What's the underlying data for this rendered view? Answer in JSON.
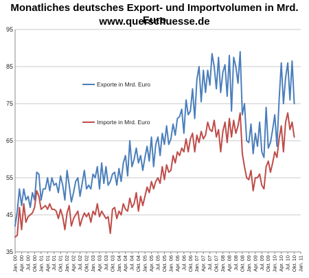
{
  "title": "Monatliches deutsches Export- und Importvolumen in Mrd. Euro",
  "subtitle": "www.querschuesse.de",
  "chart_data": {
    "type": "line",
    "x": [
      "Jan. 00",
      "Feb. 00",
      "Mrz. 00",
      "Apr. 00",
      "Mai 00",
      "Jun. 00",
      "Jul. 00",
      "Aug. 00",
      "Sep. 00",
      "Okt. 00",
      "Nov. 00",
      "Dez. 00",
      "Jan. 01",
      "Feb. 01",
      "Mrz. 01",
      "Apr. 01",
      "Mai 01",
      "Jun. 01",
      "Jul. 01",
      "Aug. 01",
      "Sep. 01",
      "Okt. 01",
      "Nov. 01",
      "Dez. 01",
      "Jan. 02",
      "Feb. 02",
      "Mrz. 02",
      "Apr. 02",
      "Mai 02",
      "Jun. 02",
      "Jul. 02",
      "Aug. 02",
      "Sep. 02",
      "Okt. 02",
      "Nov. 02",
      "Dez. 02",
      "Jan. 03",
      "Feb. 03",
      "Mrz. 03",
      "Apr. 03",
      "Mai 03",
      "Jun. 03",
      "Jul. 03",
      "Aug. 03",
      "Sep. 03",
      "Okt. 03",
      "Nov. 03",
      "Dez. 03",
      "Jan. 04",
      "Feb. 04",
      "Mrz. 04",
      "Apr. 04",
      "Mai 04",
      "Jun. 04",
      "Jul. 04",
      "Aug. 04",
      "Sep. 04",
      "Okt. 04",
      "Nov. 04",
      "Dez. 04",
      "Jan. 05",
      "Feb. 05",
      "Mrz. 05",
      "Apr. 05",
      "Mai 05",
      "Jun. 05",
      "Jul. 05",
      "Aug. 05",
      "Sep. 05",
      "Okt. 05",
      "Nov. 05",
      "Dez. 05",
      "Jan. 06",
      "Feb. 06",
      "Mrz. 06",
      "Apr. 06",
      "Mai 06",
      "Jun. 06",
      "Jul. 06",
      "Aug. 06",
      "Sep. 06",
      "Okt. 06",
      "Nov. 06",
      "Dez. 06",
      "Jan. 07",
      "Feb. 07",
      "Mrz. 07",
      "Apr. 07",
      "Mai 07",
      "Jun. 07",
      "Jul. 07",
      "Aug. 07",
      "Sep. 07",
      "Okt. 07",
      "Nov. 07",
      "Dez. 07",
      "Jan. 08",
      "Feb. 08",
      "Mrz. 08",
      "Apr. 08",
      "Mai 08",
      "Jun. 08",
      "Jul. 08",
      "Aug. 08",
      "Sep. 08",
      "Okt. 08",
      "Nov. 08",
      "Dez. 08",
      "Jan. 09",
      "Feb. 09",
      "Mrz. 09",
      "Apr. 09",
      "Mai 09",
      "Jun. 09",
      "Jul. 09",
      "Aug. 09",
      "Sep. 09",
      "Okt. 09",
      "Nov. 09",
      "Dez. 09",
      "Jan. 10",
      "Feb. 10",
      "Mrz. 10",
      "Apr. 10",
      "Mai 10",
      "Jun. 10",
      "Jul. 10",
      "Aug. 10",
      "Sep. 10",
      "Okt. 10"
    ],
    "series": [
      {
        "name": "Exporte in Mrd. Euro",
        "color": "#4a7ebb",
        "values": [
          42.0,
          46.0,
          52.0,
          47.5,
          52.0,
          49.0,
          50.0,
          47.0,
          51.0,
          49.0,
          56.5,
          56.0,
          49.0,
          52.0,
          52.0,
          55.0,
          51.5,
          55.0,
          53.0,
          53.5,
          51.0,
          55.5,
          53.0,
          49.0,
          57.0,
          53.0,
          48.5,
          51.0,
          54.0,
          55.0,
          50.0,
          53.5,
          57.0,
          52.0,
          53.0,
          52.0,
          56.0,
          55.0,
          58.0,
          52.0,
          59.0,
          53.5,
          58.0,
          53.0,
          54.0,
          56.0,
          56.5,
          53.0,
          57.5,
          54.0,
          59.0,
          61.0,
          55.5,
          65.0,
          58.0,
          60.0,
          63.0,
          59.0,
          61.0,
          57.0,
          60.5,
          63.5,
          59.5,
          66.0,
          58.0,
          64.0,
          66.0,
          61.0,
          67.0,
          64.0,
          69.0,
          64.0,
          65.5,
          69.5,
          66.5,
          71.0,
          71.5,
          73.5,
          67.0,
          76.0,
          72.0,
          73.0,
          79.0,
          71.0,
          81.5,
          85.0,
          75.5,
          84.0,
          78.0,
          84.0,
          80.0,
          88.5,
          85.0,
          79.0,
          87.5,
          78.0,
          83.5,
          85.5,
          77.0,
          88.0,
          73.0,
          87.5,
          85.0,
          80.5,
          89.0,
          72.0,
          75.0,
          65.0,
          64.5,
          69.5,
          61.5,
          67.0,
          63.5,
          70.0,
          62.0,
          60.5,
          74.0,
          63.0,
          64.5,
          68.0,
          72.0,
          63.5,
          76.0,
          86.0,
          75.0,
          82.0,
          86.0,
          76.0,
          86.5,
          75.0
        ]
      },
      {
        "name": "Importe in Mrd. Euro",
        "color": "#be4b48",
        "values": [
          39.0,
          39.5,
          47.0,
          41.0,
          48.0,
          43.0,
          44.5,
          45.0,
          45.5,
          47.0,
          51.5,
          50.0,
          46.5,
          47.0,
          47.5,
          46.5,
          48.0,
          46.5,
          46.5,
          46.0,
          44.0,
          46.5,
          44.5,
          41.0,
          45.5,
          47.5,
          42.0,
          44.0,
          45.0,
          46.0,
          42.0,
          44.0,
          45.5,
          44.5,
          45.5,
          43.0,
          46.0,
          45.0,
          48.0,
          44.5,
          46.0,
          45.0,
          44.0,
          44.5,
          40.0,
          46.5,
          47.0,
          44.0,
          46.0,
          45.0,
          48.0,
          46.5,
          46.0,
          49.5,
          47.0,
          48.0,
          51.0,
          46.0,
          50.0,
          47.5,
          50.0,
          52.5,
          51.0,
          54.0,
          52.0,
          54.0,
          55.0,
          53.5,
          58.0,
          54.5,
          58.5,
          56.5,
          57.0,
          61.0,
          59.0,
          62.0,
          61.0,
          63.0,
          62.0,
          65.5,
          62.0,
          65.5,
          67.0,
          62.0,
          66.5,
          64.5,
          67.5,
          65.5,
          66.5,
          70.0,
          68.0,
          67.5,
          70.5,
          66.0,
          68.0,
          62.0,
          67.5,
          70.0,
          64.5,
          71.0,
          66.0,
          70.5,
          67.0,
          69.0,
          72.5,
          61.5,
          58.0,
          55.0,
          54.5,
          57.0,
          51.5,
          55.0,
          55.0,
          56.0,
          53.0,
          52.0,
          58.0,
          59.5,
          56.5,
          59.0,
          62.0,
          60.5,
          65.5,
          69.0,
          62.0,
          70.0,
          72.5,
          68.0,
          70.0,
          66.0
        ]
      }
    ],
    "x_tick_labels": [
      "Jan. 00",
      "Apr. 00",
      "Jul. 00",
      "Okt. 00",
      "Jan. 01",
      "Apr. 01",
      "Jul. 01",
      "Okt. 01",
      "Jan. 02",
      "Apr. 02",
      "Jul. 02",
      "Okt. 02",
      "Jan. 03",
      "Apr. 03",
      "Jul. 03",
      "Okt. 03",
      "Jan. 04",
      "Apr. 04",
      "Jul. 04",
      "Okt. 04",
      "Jan. 05",
      "Apr. 05",
      "Jul. 05",
      "Okt. 05",
      "Jan. 06",
      "Apr. 06",
      "Jul. 06",
      "Okt. 06",
      "Jan. 07",
      "Apr. 07",
      "Jul. 07",
      "Okt. 07",
      "Jan. 08",
      "Apr. 08",
      "Jul. 08",
      "Okt. 08",
      "Jan. 09",
      "Apr. 09",
      "Jul. 09",
      "Okt. 09",
      "Jan. 10",
      "Apr. 10",
      "Jul. 10",
      "Okt. 10",
      "Jan. 11"
    ],
    "y_ticks": [
      35,
      45,
      55,
      65,
      75,
      85,
      95
    ],
    "ylim": [
      35,
      95
    ],
    "grid": true,
    "xlabel": "",
    "ylabel": ""
  }
}
